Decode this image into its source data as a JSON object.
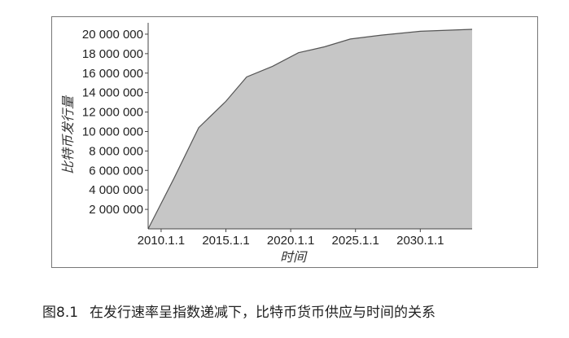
{
  "chart_data": {
    "type": "area",
    "ylabel": "比特币发行量",
    "xlabel": "时间",
    "x_ticks": [
      "2010.1.1",
      "2015.1.1",
      "2020.1.1",
      "2025.1.1",
      "2030.1.1"
    ],
    "y_ticks": [
      "2 000 000",
      "4 000 000",
      "6 000 000",
      "8 000 000",
      "10 000 000",
      "12 000 000",
      "14 000 000",
      "16 000 000",
      "18 000 000",
      "20 000 000"
    ],
    "xlim": [
      2009.0,
      2034.0
    ],
    "ylim": [
      0,
      21000000
    ],
    "fill_color": "#c6c6c6",
    "line_color": "#555555",
    "series": [
      {
        "x": [
          2009.0,
          2011.0,
          2012.9,
          2015.0,
          2016.6,
          2018.6,
          2020.6,
          2022.6,
          2024.6,
          2027.0,
          2030.0,
          2034.0
        ],
        "values": [
          0,
          5200000,
          10400000,
          13100000,
          15600000,
          16700000,
          18100000,
          18700000,
          19500000,
          19900000,
          20300000,
          20500000
        ]
      }
    ]
  },
  "caption": {
    "number": "图8.1",
    "text": "在发行速率呈指数递减下，比特币货币供应与时间的关系"
  }
}
